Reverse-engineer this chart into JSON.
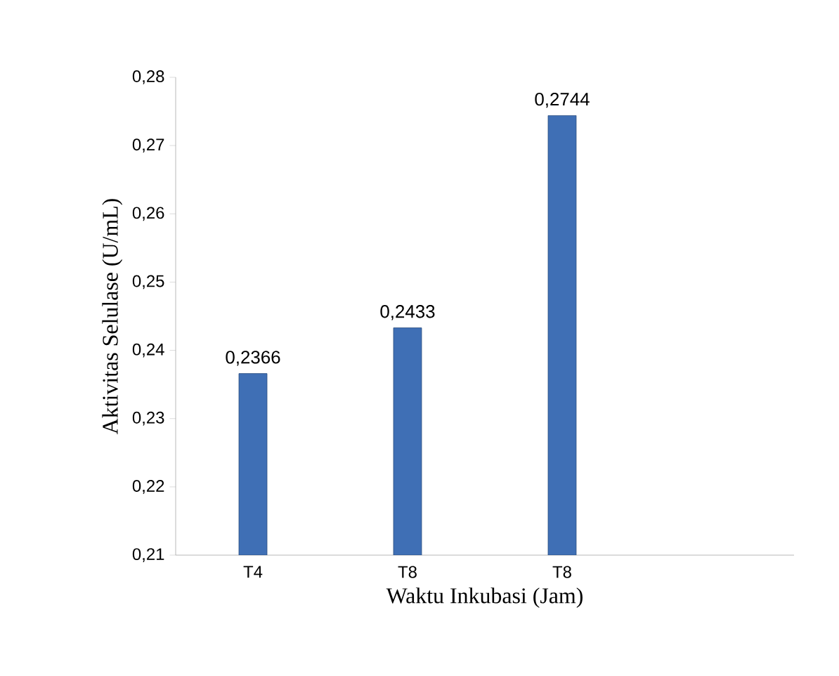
{
  "chart_data": {
    "type": "bar",
    "xlabel": "Waktu Inkubasi (Jam)",
    "ylabel": "Aktivitas Selulase (U/mL)",
    "categories": [
      "T4",
      "T8",
      "T8",
      null
    ],
    "values": [
      0.2366,
      0.2433,
      0.2744,
      null
    ],
    "value_labels": [
      "0,2366",
      "0,2433",
      "0,2744",
      null
    ],
    "color": "#3f6fb5",
    "ylim": [
      0.21,
      0.28
    ],
    "yticks": [
      {
        "value": 0.21,
        "label": "0,21"
      },
      {
        "value": 0.22,
        "label": "0,22"
      },
      {
        "value": 0.23,
        "label": "0,23"
      },
      {
        "value": 0.24,
        "label": "0,24"
      },
      {
        "value": 0.25,
        "label": "0,25"
      },
      {
        "value": 0.26,
        "label": "0,26"
      },
      {
        "value": 0.27,
        "label": "0,27"
      },
      {
        "value": 0.28,
        "label": "0,28"
      }
    ],
    "grid": false
  }
}
